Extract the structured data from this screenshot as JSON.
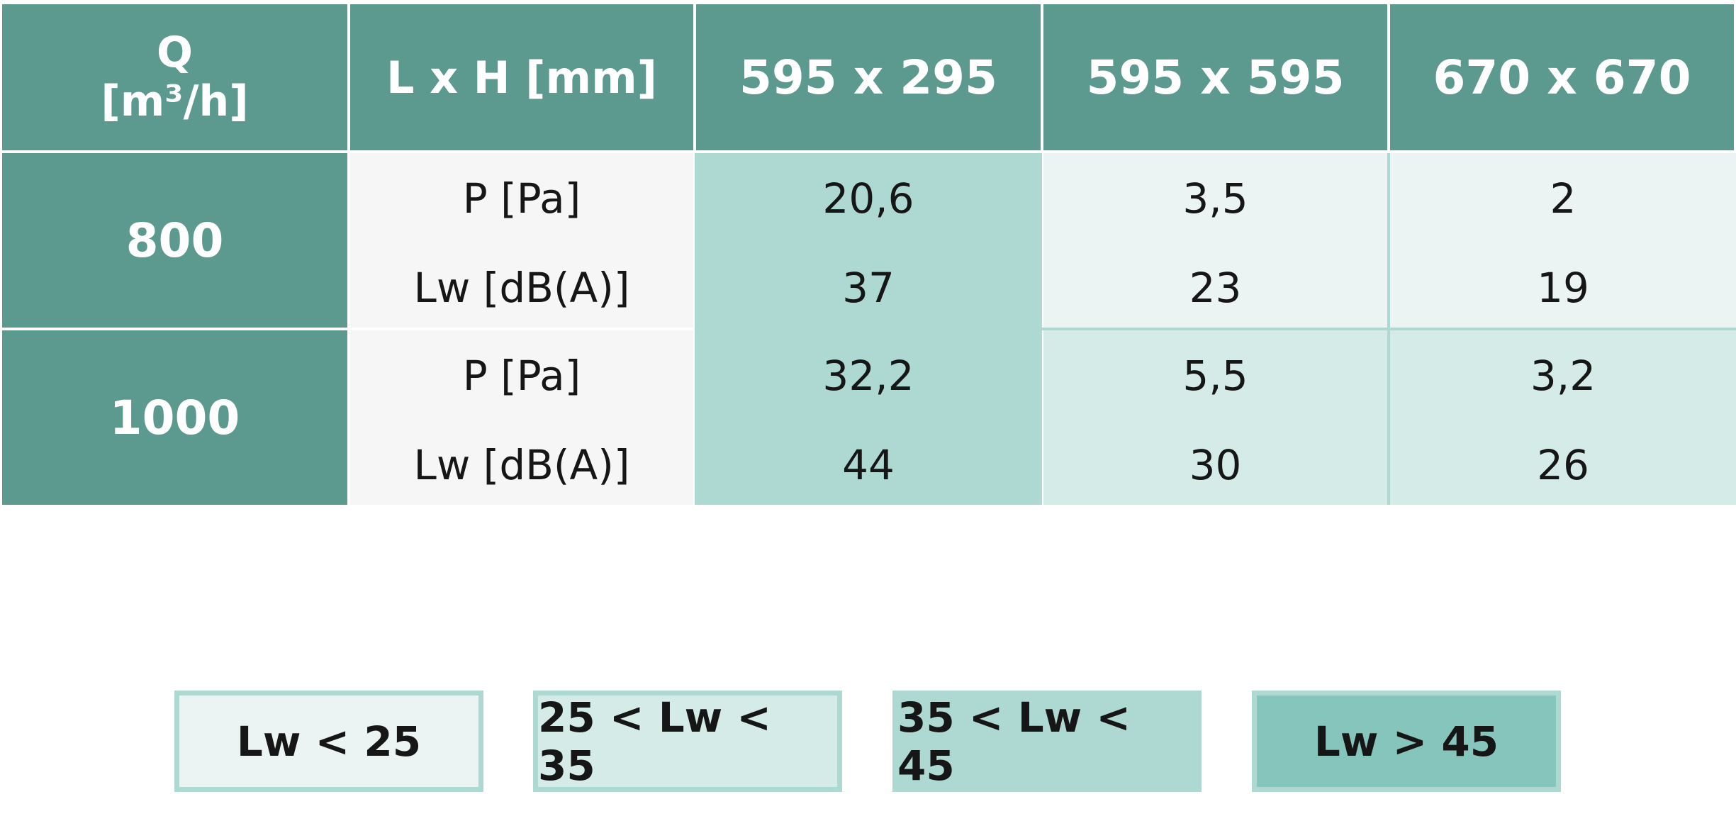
{
  "table": {
    "header": {
      "q_label": "Q",
      "q_unit": "[m³/h]",
      "dim_label": "L x H [mm]",
      "sizes": [
        "595 x 295",
        "595 x 595",
        "670 x 670"
      ]
    },
    "rows": [
      {
        "flow": "800",
        "params": [
          "P [Pa]",
          "Lw [dB(A)]"
        ],
        "values": [
          {
            "p": "20,6",
            "lw": "37",
            "level": "35-45"
          },
          {
            "p": "3,5",
            "lw": "23",
            "level": "lt25"
          },
          {
            "p": "2",
            "lw": "19",
            "level": "lt25"
          }
        ]
      },
      {
        "flow": "1000",
        "params": [
          "P [Pa]",
          "Lw [dB(A)]"
        ],
        "values": [
          {
            "p": "32,2",
            "lw": "44",
            "level": "35-45"
          },
          {
            "p": "5,5",
            "lw": "30",
            "level": "25-35"
          },
          {
            "p": "3,2",
            "lw": "26",
            "level": "25-35"
          }
        ]
      }
    ]
  },
  "legend": [
    {
      "label": "Lw < 25",
      "color": "#ebf4f2"
    },
    {
      "label": "25 < Lw < 35",
      "color": "#d5ebe7"
    },
    {
      "label": "35 < Lw < 45",
      "color": "#aed8d2"
    },
    {
      "label": "Lw > 45",
      "color": "#86c5bb"
    }
  ],
  "colors": {
    "header": "#5c9a8f",
    "param_column": "#f6f6f6",
    "border": "#aed8d2"
  }
}
